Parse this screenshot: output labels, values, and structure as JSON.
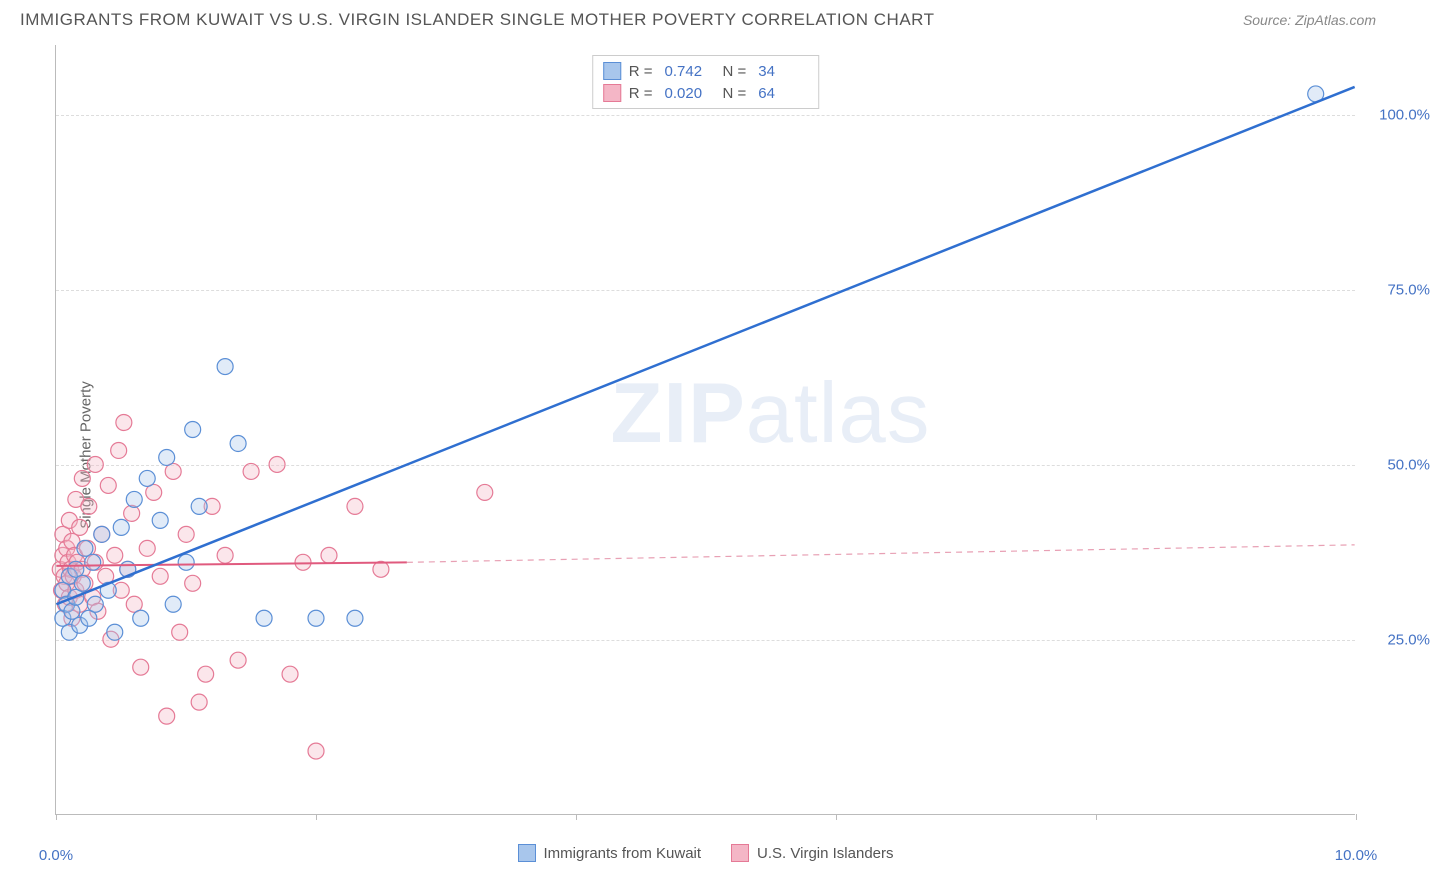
{
  "header": {
    "title": "IMMIGRANTS FROM KUWAIT VS U.S. VIRGIN ISLANDER SINGLE MOTHER POVERTY CORRELATION CHART",
    "source": "Source: ZipAtlas.com"
  },
  "watermark": {
    "text_z": "ZIP",
    "text_a": "atlas"
  },
  "chart": {
    "type": "scatter",
    "background_color": "#ffffff",
    "grid_color": "#dddddd",
    "axis_color": "#bbbbbb",
    "ylabel": "Single Mother Poverty",
    "ylabel_color": "#666666",
    "label_fontsize": 15,
    "tick_color": "#4472c4",
    "xlim": [
      0,
      10
    ],
    "ylim": [
      0,
      110
    ],
    "y_ticks": [
      25,
      50,
      75,
      100
    ],
    "y_tick_labels": [
      "25.0%",
      "50.0%",
      "75.0%",
      "100.0%"
    ],
    "x_ticks": [
      0,
      2,
      4,
      6,
      8,
      10
    ],
    "x_tick_labels_shown": {
      "0": "0.0%",
      "10": "10.0%"
    },
    "series": {
      "kuwait": {
        "label": "Immigrants from Kuwait",
        "color_fill": "#a8c6ec",
        "color_stroke": "#5b8fd6",
        "marker_radius": 8,
        "R": "0.742",
        "N": "34",
        "trend": {
          "x1": 0.0,
          "y1": 30,
          "x2": 10.0,
          "y2": 104,
          "stroke": "#2f6fd0",
          "width": 2.5,
          "dash": ""
        },
        "points": [
          [
            0.05,
            32
          ],
          [
            0.05,
            28
          ],
          [
            0.08,
            30
          ],
          [
            0.1,
            34
          ],
          [
            0.1,
            26
          ],
          [
            0.12,
            29
          ],
          [
            0.15,
            35
          ],
          [
            0.15,
            31
          ],
          [
            0.18,
            27
          ],
          [
            0.2,
            33
          ],
          [
            0.22,
            38
          ],
          [
            0.25,
            28
          ],
          [
            0.28,
            36
          ],
          [
            0.3,
            30
          ],
          [
            0.35,
            40
          ],
          [
            0.4,
            32
          ],
          [
            0.45,
            26
          ],
          [
            0.5,
            41
          ],
          [
            0.55,
            35
          ],
          [
            0.6,
            45
          ],
          [
            0.65,
            28
          ],
          [
            0.7,
            48
          ],
          [
            0.8,
            42
          ],
          [
            0.85,
            51
          ],
          [
            0.9,
            30
          ],
          [
            1.0,
            36
          ],
          [
            1.05,
            55
          ],
          [
            1.1,
            44
          ],
          [
            1.3,
            64
          ],
          [
            1.4,
            53
          ],
          [
            1.6,
            28
          ],
          [
            2.0,
            28
          ],
          [
            2.3,
            28
          ],
          [
            9.7,
            103
          ]
        ]
      },
      "usvi": {
        "label": "U.S. Virgin Islanders",
        "color_fill": "#f4b6c6",
        "color_stroke": "#e57a96",
        "marker_radius": 8,
        "R": "0.020",
        "N": "64",
        "trend_solid": {
          "x1": 0.0,
          "y1": 35.5,
          "x2": 2.7,
          "y2": 36,
          "stroke": "#e05a7e",
          "width": 2,
          "dash": ""
        },
        "trend_dash": {
          "x1": 2.7,
          "y1": 36,
          "x2": 10.0,
          "y2": 38.5,
          "stroke": "#e8a0b4",
          "width": 1.2,
          "dash": "6,5"
        },
        "points": [
          [
            0.03,
            35
          ],
          [
            0.04,
            32
          ],
          [
            0.05,
            37
          ],
          [
            0.05,
            40
          ],
          [
            0.06,
            34
          ],
          [
            0.07,
            30
          ],
          [
            0.08,
            38
          ],
          [
            0.08,
            33
          ],
          [
            0.09,
            36
          ],
          [
            0.1,
            31
          ],
          [
            0.1,
            42
          ],
          [
            0.11,
            35
          ],
          [
            0.12,
            28
          ],
          [
            0.12,
            39
          ],
          [
            0.13,
            34
          ],
          [
            0.14,
            37
          ],
          [
            0.15,
            45
          ],
          [
            0.15,
            32
          ],
          [
            0.16,
            36
          ],
          [
            0.18,
            30
          ],
          [
            0.18,
            41
          ],
          [
            0.2,
            35
          ],
          [
            0.2,
            48
          ],
          [
            0.22,
            33
          ],
          [
            0.24,
            38
          ],
          [
            0.25,
            44
          ],
          [
            0.28,
            31
          ],
          [
            0.3,
            36
          ],
          [
            0.3,
            50
          ],
          [
            0.32,
            29
          ],
          [
            0.35,
            40
          ],
          [
            0.38,
            34
          ],
          [
            0.4,
            47
          ],
          [
            0.42,
            25
          ],
          [
            0.45,
            37
          ],
          [
            0.48,
            52
          ],
          [
            0.5,
            32
          ],
          [
            0.52,
            56
          ],
          [
            0.55,
            35
          ],
          [
            0.58,
            43
          ],
          [
            0.6,
            30
          ],
          [
            0.65,
            21
          ],
          [
            0.7,
            38
          ],
          [
            0.75,
            46
          ],
          [
            0.8,
            34
          ],
          [
            0.85,
            14
          ],
          [
            0.9,
            49
          ],
          [
            0.95,
            26
          ],
          [
            1.0,
            40
          ],
          [
            1.05,
            33
          ],
          [
            1.1,
            16
          ],
          [
            1.15,
            20
          ],
          [
            1.2,
            44
          ],
          [
            1.3,
            37
          ],
          [
            1.4,
            22
          ],
          [
            1.5,
            49
          ],
          [
            1.7,
            50
          ],
          [
            1.8,
            20
          ],
          [
            1.9,
            36
          ],
          [
            2.0,
            9
          ],
          [
            2.1,
            37
          ],
          [
            2.3,
            44
          ],
          [
            2.5,
            35
          ],
          [
            3.3,
            46
          ]
        ]
      }
    },
    "legend_top": {
      "r_label": "R =",
      "n_label": "N ="
    }
  }
}
